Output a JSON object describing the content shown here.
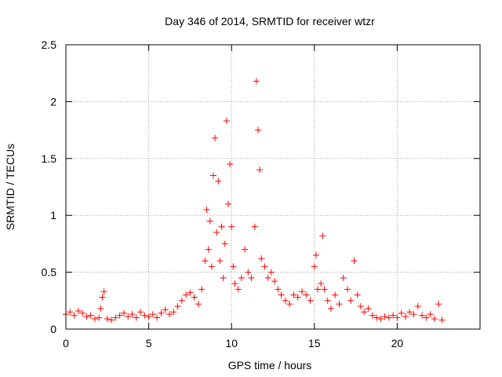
{
  "chart_data": {
    "type": "scatter",
    "title": "Day 346 of 2014, SRMTID for receiver wtzr",
    "xlabel": "GPS time / hours",
    "ylabel": "SRMTID / TECUs",
    "xlim": [
      0,
      25
    ],
    "ylim": [
      0,
      2.5
    ],
    "xticks": [
      0,
      5,
      10,
      15,
      20
    ],
    "xtick_labels": [
      "0",
      "5",
      "10",
      "15",
      "20"
    ],
    "yticks": [
      0,
      0.5,
      1,
      1.5,
      2,
      2.5
    ],
    "ytick_labels": [
      "0",
      "0.5",
      "1",
      "1.5",
      "2",
      "2.5"
    ],
    "grid": true,
    "marker": "+",
    "series": [
      {
        "name": "SRMTID",
        "color": "#ff0000",
        "x": [
          0.0,
          0.25,
          0.5,
          0.75,
          1.0,
          1.25,
          1.5,
          1.75,
          2.0,
          2.1,
          2.2,
          2.3,
          2.5,
          2.75,
          3.0,
          3.25,
          3.5,
          3.75,
          4.0,
          4.25,
          4.5,
          4.75,
          5.0,
          5.25,
          5.5,
          5.75,
          6.0,
          6.25,
          6.5,
          6.75,
          7.0,
          7.25,
          7.5,
          7.75,
          8.0,
          8.2,
          8.4,
          8.5,
          8.6,
          8.7,
          8.8,
          8.9,
          9.0,
          9.1,
          9.2,
          9.3,
          9.4,
          9.5,
          9.6,
          9.7,
          9.8,
          9.9,
          10.0,
          10.1,
          10.2,
          10.4,
          10.6,
          10.8,
          11.0,
          11.2,
          11.4,
          11.5,
          11.6,
          11.7,
          11.8,
          12.0,
          12.2,
          12.4,
          12.6,
          12.8,
          13.0,
          13.25,
          13.5,
          13.75,
          14.0,
          14.25,
          14.5,
          14.75,
          15.0,
          15.1,
          15.2,
          15.4,
          15.5,
          15.6,
          15.8,
          16.0,
          16.25,
          16.5,
          16.75,
          17.0,
          17.2,
          17.4,
          17.6,
          17.8,
          18.0,
          18.25,
          18.5,
          18.75,
          19.0,
          19.25,
          19.5,
          19.75,
          20.0,
          20.25,
          20.5,
          20.75,
          21.0,
          21.25,
          21.5,
          21.75,
          22.0,
          22.25,
          22.5,
          22.7
        ],
        "y": [
          0.13,
          0.15,
          0.12,
          0.16,
          0.14,
          0.11,
          0.12,
          0.09,
          0.1,
          0.18,
          0.28,
          0.33,
          0.09,
          0.08,
          0.1,
          0.12,
          0.14,
          0.11,
          0.13,
          0.1,
          0.15,
          0.12,
          0.11,
          0.13,
          0.1,
          0.14,
          0.17,
          0.13,
          0.15,
          0.2,
          0.25,
          0.3,
          0.32,
          0.28,
          0.22,
          0.35,
          0.6,
          1.05,
          0.7,
          0.95,
          0.55,
          1.35,
          1.68,
          0.85,
          1.3,
          0.6,
          0.9,
          0.45,
          0.75,
          1.83,
          1.1,
          1.45,
          0.9,
          0.55,
          0.4,
          0.35,
          0.45,
          0.7,
          0.5,
          0.45,
          0.9,
          2.18,
          1.75,
          1.4,
          0.62,
          0.55,
          0.45,
          0.5,
          0.42,
          0.35,
          0.3,
          0.25,
          0.22,
          0.3,
          0.28,
          0.33,
          0.3,
          0.25,
          0.55,
          0.65,
          0.35,
          0.4,
          0.82,
          0.35,
          0.25,
          0.18,
          0.3,
          0.22,
          0.45,
          0.35,
          0.25,
          0.6,
          0.3,
          0.2,
          0.15,
          0.18,
          0.12,
          0.1,
          0.09,
          0.11,
          0.1,
          0.12,
          0.1,
          0.14,
          0.11,
          0.15,
          0.13,
          0.2,
          0.12,
          0.1,
          0.13,
          0.09,
          0.22,
          0.08
        ]
      }
    ]
  }
}
